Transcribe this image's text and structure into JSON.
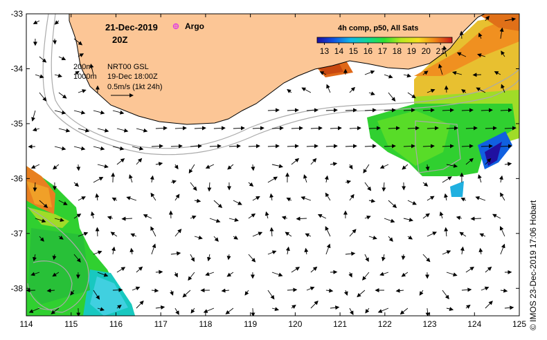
{
  "title": {
    "date": "21-Dec-2019",
    "time": "20Z",
    "argo_label": "Argo"
  },
  "legend": {
    "depth_200": "200m",
    "depth_1000": "1000m",
    "product": "NRT00 GSL",
    "product_time": "19-Dec 18:00Z",
    "scale": "0.5m/s (1kt 24h)"
  },
  "colorbar": {
    "title": "4h comp, p50, All Sats",
    "ticks": [
      "13",
      "14",
      "15",
      "16",
      "17",
      "18",
      "19",
      "20",
      "21"
    ],
    "min": 12.5,
    "max": 21.8
  },
  "axes": {
    "x_ticks": [
      "114",
      "115",
      "116",
      "117",
      "118",
      "119",
      "120",
      "121",
      "122",
      "123",
      "124",
      "125"
    ],
    "y_ticks": [
      "-33",
      "-34",
      "-35",
      "-36",
      "-37",
      "-38"
    ],
    "lon_range": [
      114,
      125
    ],
    "lat_range": [
      -38.5,
      -33
    ]
  },
  "credit": "© IMOS 23-Dec-2019 17:06 Hobart",
  "colors": {
    "land": "#fcc696",
    "frame": "#000000",
    "argo": "#e040e0"
  }
}
